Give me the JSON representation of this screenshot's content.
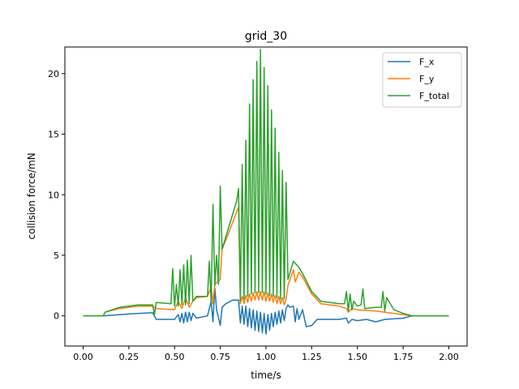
{
  "chart_data": {
    "type": "line",
    "title": "grid_30",
    "xlabel": "time/s",
    "ylabel": "collision force/mN",
    "xlim": [
      -0.1,
      2.1
    ],
    "ylim": [
      -2.5,
      22.2
    ],
    "xticks": [
      0.0,
      0.25,
      0.5,
      0.75,
      1.0,
      1.25,
      1.5,
      1.75,
      2.0
    ],
    "xtick_labels": [
      "0.00",
      "0.25",
      "0.50",
      "0.75",
      "1.00",
      "1.25",
      "1.50",
      "1.75",
      "2.00"
    ],
    "yticks": [
      0,
      5,
      10,
      15,
      20
    ],
    "ytick_labels": [
      "0",
      "5",
      "10",
      "15",
      "20"
    ],
    "legend_position": "top-right",
    "grid": false,
    "series": [
      {
        "name": "F_x",
        "color": "#1f77b4",
        "points": [
          [
            0.0,
            0.0
          ],
          [
            0.11,
            0.0
          ],
          [
            0.2,
            0.1
          ],
          [
            0.3,
            0.2
          ],
          [
            0.38,
            0.25
          ],
          [
            0.4,
            -0.3
          ],
          [
            0.5,
            -0.3
          ],
          [
            0.52,
            0.1
          ],
          [
            0.53,
            -0.5
          ],
          [
            0.54,
            0.2
          ],
          [
            0.55,
            -0.6
          ],
          [
            0.56,
            0.3
          ],
          [
            0.57,
            -0.5
          ],
          [
            0.58,
            0.3
          ],
          [
            0.59,
            -0.4
          ],
          [
            0.6,
            0.2
          ],
          [
            0.62,
            -0.2
          ],
          [
            0.68,
            0.0
          ],
          [
            0.7,
            1.2
          ],
          [
            0.71,
            -0.5
          ],
          [
            0.72,
            2.3
          ],
          [
            0.73,
            0.5
          ],
          [
            0.75,
            -0.8
          ],
          [
            0.76,
            0.7
          ],
          [
            0.78,
            1.0
          ],
          [
            0.82,
            1.3
          ],
          [
            0.85,
            1.3
          ],
          [
            0.86,
            -0.6
          ],
          [
            0.87,
            0.8
          ],
          [
            0.88,
            -0.7
          ],
          [
            0.89,
            0.8
          ],
          [
            0.9,
            -0.9
          ],
          [
            0.91,
            0.6
          ],
          [
            0.92,
            -1.0
          ],
          [
            0.93,
            0.5
          ],
          [
            0.94,
            -1.2
          ],
          [
            0.95,
            0.4
          ],
          [
            0.96,
            -1.3
          ],
          [
            0.97,
            0.3
          ],
          [
            0.98,
            -1.4
          ],
          [
            0.99,
            0.2
          ],
          [
            1.0,
            -1.5
          ],
          [
            1.01,
            0.1
          ],
          [
            1.02,
            -1.2
          ],
          [
            1.03,
            0.2
          ],
          [
            1.04,
            -0.9
          ],
          [
            1.05,
            0.3
          ],
          [
            1.06,
            -0.7
          ],
          [
            1.07,
            0.4
          ],
          [
            1.08,
            -0.6
          ],
          [
            1.09,
            0.5
          ],
          [
            1.1,
            -0.4
          ],
          [
            1.11,
            0.6
          ],
          [
            1.12,
            0.9
          ],
          [
            1.13,
            0.7
          ],
          [
            1.15,
            0.8
          ],
          [
            1.16,
            -0.5
          ],
          [
            1.17,
            0.6
          ],
          [
            1.18,
            -0.3
          ],
          [
            1.2,
            0.5
          ],
          [
            1.22,
            -0.9
          ],
          [
            1.25,
            -0.8
          ],
          [
            1.28,
            -0.3
          ],
          [
            1.4,
            -0.3
          ],
          [
            1.44,
            -0.2
          ],
          [
            1.45,
            -0.6
          ],
          [
            1.47,
            -0.3
          ],
          [
            1.5,
            -0.4
          ],
          [
            1.55,
            -0.3
          ],
          [
            1.6,
            -0.5
          ],
          [
            1.65,
            -0.3
          ],
          [
            1.75,
            -0.2
          ],
          [
            1.8,
            0.0
          ],
          [
            2.0,
            0.0
          ]
        ]
      },
      {
        "name": "F_y",
        "color": "#ff7f0e",
        "points": [
          [
            0.0,
            0.0
          ],
          [
            0.11,
            0.0
          ],
          [
            0.12,
            0.3
          ],
          [
            0.2,
            0.6
          ],
          [
            0.3,
            0.8
          ],
          [
            0.38,
            0.8
          ],
          [
            0.4,
            0.6
          ],
          [
            0.5,
            0.5
          ],
          [
            0.52,
            1.2
          ],
          [
            0.54,
            0.6
          ],
          [
            0.56,
            1.5
          ],
          [
            0.58,
            0.7
          ],
          [
            0.6,
            1.2
          ],
          [
            0.62,
            1.5
          ],
          [
            0.68,
            1.6
          ],
          [
            0.7,
            2.4
          ],
          [
            0.71,
            1.0
          ],
          [
            0.72,
            2.6
          ],
          [
            0.75,
            3.0
          ],
          [
            0.76,
            5.5
          ],
          [
            0.8,
            7.0
          ],
          [
            0.85,
            9.0
          ],
          [
            0.86,
            1.0
          ],
          [
            0.87,
            1.6
          ],
          [
            0.88,
            1.0
          ],
          [
            0.89,
            1.7
          ],
          [
            0.9,
            1.1
          ],
          [
            0.91,
            1.8
          ],
          [
            0.92,
            1.2
          ],
          [
            0.93,
            1.9
          ],
          [
            0.94,
            1.3
          ],
          [
            0.95,
            2.0
          ],
          [
            0.96,
            1.3
          ],
          [
            0.97,
            2.0
          ],
          [
            0.98,
            1.3
          ],
          [
            0.99,
            2.0
          ],
          [
            1.0,
            1.2
          ],
          [
            1.01,
            1.9
          ],
          [
            1.02,
            1.2
          ],
          [
            1.03,
            1.8
          ],
          [
            1.04,
            1.1
          ],
          [
            1.05,
            1.7
          ],
          [
            1.06,
            1.0
          ],
          [
            1.07,
            1.6
          ],
          [
            1.08,
            1.0
          ],
          [
            1.09,
            1.5
          ],
          [
            1.1,
            0.9
          ],
          [
            1.11,
            1.4
          ],
          [
            1.12,
            2.5
          ],
          [
            1.15,
            3.8
          ],
          [
            1.16,
            2.8
          ],
          [
            1.18,
            3.6
          ],
          [
            1.2,
            3.2
          ],
          [
            1.25,
            1.8
          ],
          [
            1.3,
            1.0
          ],
          [
            1.4,
            0.8
          ],
          [
            1.44,
            0.6
          ],
          [
            1.45,
            0.3
          ],
          [
            1.47,
            0.6
          ],
          [
            1.5,
            0.5
          ],
          [
            1.6,
            0.4
          ],
          [
            1.65,
            0.3
          ],
          [
            1.7,
            0.2
          ],
          [
            1.8,
            0.0
          ],
          [
            2.0,
            0.0
          ]
        ]
      },
      {
        "name": "F_total",
        "color": "#2ca02c",
        "points": [
          [
            0.0,
            0.0
          ],
          [
            0.11,
            0.0
          ],
          [
            0.12,
            0.3
          ],
          [
            0.2,
            0.7
          ],
          [
            0.3,
            0.9
          ],
          [
            0.38,
            0.9
          ],
          [
            0.39,
            0.1
          ],
          [
            0.4,
            1.1
          ],
          [
            0.48,
            1.0
          ],
          [
            0.49,
            3.9
          ],
          [
            0.5,
            0.8
          ],
          [
            0.51,
            2.6
          ],
          [
            0.52,
            0.8
          ],
          [
            0.53,
            3.8
          ],
          [
            0.54,
            0.9
          ],
          [
            0.55,
            4.2
          ],
          [
            0.56,
            0.9
          ],
          [
            0.57,
            4.6
          ],
          [
            0.58,
            1.0
          ],
          [
            0.59,
            5.0
          ],
          [
            0.6,
            1.2
          ],
          [
            0.62,
            1.6
          ],
          [
            0.68,
            1.6
          ],
          [
            0.69,
            4.5
          ],
          [
            0.7,
            1.1
          ],
          [
            0.71,
            9.2
          ],
          [
            0.72,
            2.5
          ],
          [
            0.73,
            5.0
          ],
          [
            0.74,
            2.6
          ],
          [
            0.75,
            10.7
          ],
          [
            0.76,
            5.5
          ],
          [
            0.8,
            7.5
          ],
          [
            0.84,
            9.5
          ],
          [
            0.85,
            10.5
          ],
          [
            0.86,
            1.2
          ],
          [
            0.87,
            12.5
          ],
          [
            0.88,
            1.4
          ],
          [
            0.89,
            14.5
          ],
          [
            0.9,
            1.6
          ],
          [
            0.91,
            17.5
          ],
          [
            0.92,
            1.8
          ],
          [
            0.93,
            19.5
          ],
          [
            0.94,
            1.9
          ],
          [
            0.95,
            21.0
          ],
          [
            0.96,
            1.9
          ],
          [
            0.97,
            22.0
          ],
          [
            0.98,
            1.9
          ],
          [
            0.99,
            20.5
          ],
          [
            1.0,
            1.8
          ],
          [
            1.01,
            19.0
          ],
          [
            1.02,
            1.7
          ],
          [
            1.03,
            17.0
          ],
          [
            1.04,
            1.6
          ],
          [
            1.05,
            15.5
          ],
          [
            1.06,
            1.5
          ],
          [
            1.07,
            13.5
          ],
          [
            1.08,
            1.4
          ],
          [
            1.09,
            12.0
          ],
          [
            1.1,
            1.4
          ],
          [
            1.11,
            11.0
          ],
          [
            1.12,
            3.0
          ],
          [
            1.15,
            4.5
          ],
          [
            1.18,
            4.0
          ],
          [
            1.2,
            3.5
          ],
          [
            1.25,
            2.0
          ],
          [
            1.3,
            1.2
          ],
          [
            1.4,
            1.0
          ],
          [
            1.43,
            1.0
          ],
          [
            1.44,
            2.0
          ],
          [
            1.45,
            0.4
          ],
          [
            1.46,
            1.8
          ],
          [
            1.47,
            0.5
          ],
          [
            1.48,
            1.2
          ],
          [
            1.5,
            0.8
          ],
          [
            1.52,
            0.9
          ],
          [
            1.53,
            2.2
          ],
          [
            1.54,
            0.6
          ],
          [
            1.6,
            0.7
          ],
          [
            1.63,
            0.7
          ],
          [
            1.64,
            2.0
          ],
          [
            1.65,
            0.4
          ],
          [
            1.66,
            1.5
          ],
          [
            1.7,
            0.5
          ],
          [
            1.75,
            0.2
          ],
          [
            1.8,
            0.0
          ],
          [
            2.0,
            0.0
          ]
        ]
      }
    ]
  }
}
